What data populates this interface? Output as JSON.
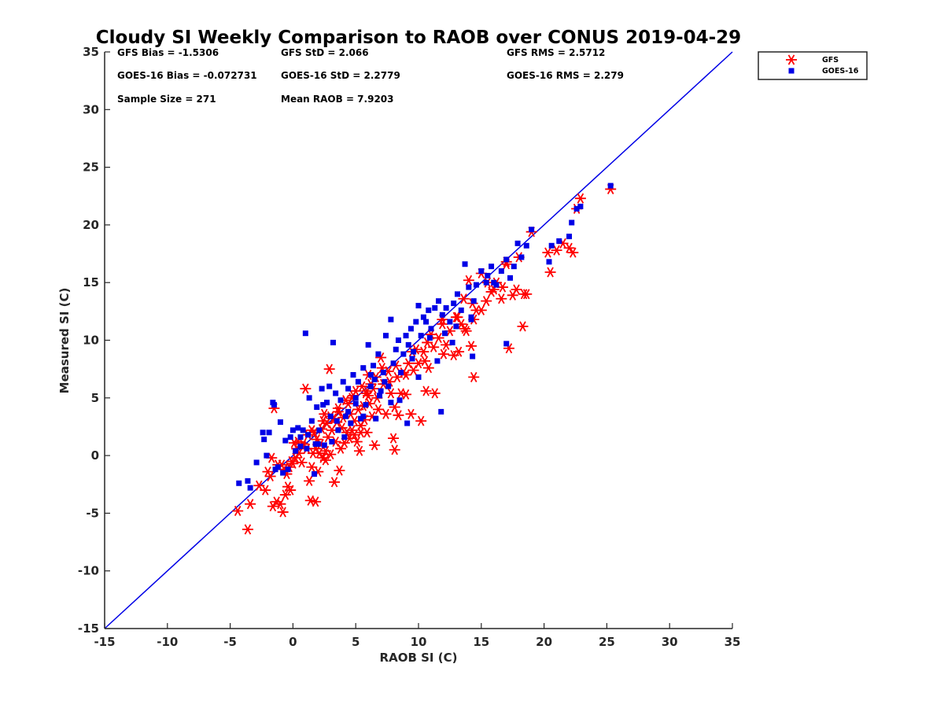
{
  "chart_data": {
    "type": "scatter",
    "title": "Cloudy SI Weekly Comparison to RAOB over CONUS 2019-04-29",
    "xlabel": "RAOB SI (C)",
    "ylabel": "Measured SI (C)",
    "xlim": [
      -15,
      35
    ],
    "ylim": [
      -15,
      35
    ],
    "xticks": [
      "-15",
      "-10",
      "-5",
      "0",
      "5",
      "10",
      "15",
      "20",
      "25",
      "30",
      "35"
    ],
    "yticks": [
      "-15",
      "-10",
      "-5",
      "0",
      "5",
      "10",
      "15",
      "20",
      "25",
      "30",
      "35"
    ],
    "grid": false,
    "legend_position": "outside top-right",
    "reference_line": {
      "x": [
        -15,
        35
      ],
      "y": [
        -15,
        35
      ],
      "color": "#0000e6"
    },
    "stats": [
      [
        "GFS Bias = -1.5306",
        "GFS StD = 2.066",
        "GFS RMS = 2.5712"
      ],
      [
        "GOES-16 Bias = -0.072731",
        "GOES-16 StD = 2.2779",
        "GOES-16 RMS = 2.279"
      ],
      [
        "Sample Size = 271",
        "Mean RAOB = 7.9203",
        ""
      ]
    ],
    "series": [
      {
        "name": "GFS",
        "marker": "asterisk",
        "color": "#ff0000",
        "x": [
          -4.4,
          -3.6,
          -3.4,
          -2.7,
          -2.2,
          -2.0,
          -1.8,
          -1.6,
          -1.5,
          -1.3,
          -1.2,
          -1.0,
          -0.9,
          -0.8,
          -0.7,
          -0.6,
          -0.5,
          -0.4,
          -0.3,
          -0.2,
          -0.1,
          0.0,
          0.1,
          0.2,
          0.3,
          0.4,
          0.5,
          0.7,
          0.8,
          1.0,
          1.1,
          1.2,
          1.3,
          1.4,
          1.5,
          1.6,
          1.7,
          1.8,
          1.9,
          2.0,
          2.1,
          2.2,
          2.3,
          2.4,
          2.5,
          2.6,
          2.7,
          2.8,
          2.9,
          3.0,
          3.1,
          3.2,
          3.3,
          3.4,
          3.5,
          3.6,
          3.7,
          3.8,
          3.9,
          4.0,
          4.1,
          4.2,
          4.3,
          4.4,
          4.5,
          4.6,
          4.7,
          4.8,
          4.9,
          5.0,
          5.1,
          5.2,
          5.3,
          5.4,
          5.5,
          5.6,
          5.7,
          5.8,
          5.9,
          6.0,
          6.1,
          6.2,
          6.3,
          6.4,
          6.5,
          6.6,
          6.7,
          6.8,
          7.0,
          7.2,
          7.4,
          7.6,
          7.8,
          8.0,
          8.1,
          8.2,
          8.4,
          8.6,
          8.8,
          9.0,
          9.2,
          9.4,
          9.6,
          9.8,
          10.0,
          10.2,
          10.4,
          10.6,
          10.8,
          11.0,
          11.3,
          11.6,
          11.9,
          12.2,
          12.5,
          12.8,
          13.0,
          13.2,
          13.4,
          13.6,
          13.8,
          14.0,
          14.2,
          14.4,
          14.6,
          15.0,
          15.4,
          15.8,
          16.2,
          16.6,
          17.0,
          17.2,
          17.5,
          17.8,
          18.0,
          18.3,
          18.6,
          19.0,
          20.3,
          20.5,
          21.0,
          21.5,
          22.0,
          22.3,
          22.6,
          22.9,
          25.3,
          0.8,
          1.5,
          2.4,
          3.6,
          4.7,
          5.9,
          7.1,
          8.3,
          9.5,
          10.7,
          11.9,
          13.1,
          14.3,
          15.5,
          16.7,
          3.0,
          6.0,
          9.0,
          12.0,
          15.0,
          18.4,
          17.0,
          14.4,
          10.5,
          8.1,
          5.4,
          2.6,
          1.8,
          -1.7,
          4.9,
          7.7,
          11.2,
          13.7,
          16.0
        ],
        "y": [
          -4.8,
          -6.4,
          -4.2,
          -2.6,
          -3.0,
          -1.4,
          -1.8,
          -4.4,
          4.1,
          -4.0,
          -0.8,
          -4.2,
          -0.8,
          -4.9,
          -1.2,
          -3.4,
          -1.6,
          -2.7,
          -1.0,
          -3.0,
          -0.5,
          -0.7,
          1.1,
          -0.2,
          0.6,
          1.2,
          0.2,
          -0.6,
          0.8,
          5.8,
          0.6,
          1.8,
          -2.2,
          -3.9,
          -1.0,
          0.2,
          2.0,
          -4.0,
          1.4,
          -1.4,
          0.2,
          1.0,
          2.3,
          -0.2,
          3.6,
          0.4,
          2.8,
          1.6,
          7.5,
          0.1,
          2.2,
          3.2,
          -2.3,
          1.2,
          2.9,
          4.1,
          -1.3,
          0.6,
          2.4,
          3.3,
          1.1,
          4.8,
          2.0,
          4.5,
          1.5,
          3.6,
          2.2,
          5.2,
          3.0,
          5.6,
          1.2,
          4.0,
          0.4,
          2.6,
          6.0,
          4.3,
          3.1,
          5.4,
          2.0,
          7.0,
          4.5,
          6.2,
          3.4,
          5.8,
          0.9,
          6.8,
          5.0,
          4.0,
          8.5,
          6.2,
          3.6,
          7.3,
          5.4,
          1.5,
          0.5,
          7.8,
          3.5,
          5.4,
          7.2,
          5.3,
          8.0,
          3.6,
          7.4,
          9.2,
          8.0,
          3.0,
          9.0,
          5.6,
          7.6,
          10.5,
          5.4,
          10.2,
          11.8,
          9.6,
          10.8,
          8.7,
          12.0,
          9.0,
          11.4,
          13.6,
          10.8,
          15.2,
          9.5,
          6.8,
          12.6,
          15.8,
          13.4,
          14.2,
          15.0,
          13.6,
          16.8,
          9.3,
          13.9,
          14.4,
          17.2,
          11.2,
          14.0,
          19.4,
          17.6,
          15.9,
          17.8,
          18.4,
          18.0,
          17.6,
          21.4,
          22.3,
          23.1,
          1.0,
          2.2,
          3.0,
          3.8,
          5.0,
          5.6,
          7.6,
          6.8,
          9.0,
          9.8,
          11.4,
          12.0,
          13.2,
          15.0,
          14.6,
          3.4,
          5.2,
          7.0,
          8.8,
          12.6,
          14.0,
          16.6,
          11.8,
          8.2,
          4.2,
          2.0,
          -0.4,
          0.6,
          -0.2,
          1.8,
          6.4,
          9.4,
          11.0,
          14.4
        ]
      },
      {
        "name": "GOES-16",
        "marker": "square",
        "color": "#0000e6",
        "x": [
          -4.3,
          -3.6,
          -3.4,
          -2.9,
          -2.3,
          -2.1,
          -1.9,
          -1.6,
          -1.4,
          -1.2,
          -1.0,
          -0.8,
          -0.6,
          -0.4,
          -0.2,
          0.0,
          0.2,
          0.4,
          0.6,
          0.8,
          1.0,
          1.2,
          1.3,
          1.5,
          1.7,
          1.9,
          2.1,
          2.3,
          2.5,
          2.7,
          2.9,
          3.0,
          3.2,
          3.4,
          3.6,
          3.8,
          4.0,
          4.2,
          4.4,
          4.6,
          4.8,
          5.0,
          5.2,
          5.4,
          5.6,
          5.8,
          6.0,
          6.2,
          6.4,
          6.6,
          6.8,
          7.0,
          7.2,
          7.4,
          7.6,
          7.8,
          8.0,
          8.2,
          8.4,
          8.6,
          8.8,
          9.0,
          9.2,
          9.4,
          9.6,
          9.8,
          10.0,
          10.2,
          10.4,
          10.6,
          10.8,
          11.0,
          11.3,
          11.6,
          11.9,
          12.2,
          12.5,
          12.8,
          13.1,
          13.4,
          13.7,
          14.0,
          14.2,
          14.4,
          14.6,
          15.0,
          15.4,
          15.8,
          16.2,
          16.6,
          17.0,
          17.3,
          17.6,
          17.9,
          18.2,
          18.6,
          19.0,
          20.4,
          20.6,
          21.2,
          22.0,
          22.2,
          22.6,
          22.9,
          25.3,
          1.1,
          3.1,
          7.8,
          0.6,
          2.0,
          4.1,
          5.6,
          6.9,
          8.5,
          10.0,
          11.5,
          12.7,
          14.2,
          16.0,
          17.0,
          3.5,
          5.0,
          6.5,
          9.1,
          13.0,
          11.8,
          9.5,
          14.3,
          2.4,
          -1.5,
          -2.4,
          1.8,
          4.4,
          6.2,
          7.3,
          10.9,
          12.1,
          15.5
        ],
        "y": [
          -2.4,
          -2.2,
          -2.8,
          -0.6,
          1.4,
          0.0,
          2.0,
          4.6,
          -1.2,
          -1.0,
          2.9,
          -1.5,
          1.3,
          -1.2,
          1.6,
          2.2,
          0.4,
          2.4,
          0.8,
          2.2,
          10.6,
          1.8,
          5.0,
          3.0,
          -1.6,
          4.2,
          2.2,
          5.8,
          0.9,
          4.6,
          6.0,
          3.4,
          9.8,
          5.4,
          2.2,
          4.8,
          6.4,
          3.4,
          5.8,
          2.8,
          7.0,
          4.5,
          6.4,
          3.2,
          7.6,
          4.4,
          9.6,
          6.0,
          7.8,
          3.2,
          8.8,
          5.6,
          7.2,
          10.4,
          6.0,
          11.8,
          8.0,
          9.2,
          10.0,
          7.2,
          8.8,
          10.4,
          9.6,
          11.0,
          9.0,
          11.6,
          13.0,
          10.4,
          12.0,
          11.6,
          12.6,
          11.0,
          12.8,
          13.4,
          12.2,
          12.8,
          11.6,
          13.2,
          14.0,
          12.6,
          16.6,
          14.6,
          11.8,
          13.4,
          14.8,
          16.0,
          15.0,
          16.4,
          14.8,
          16.0,
          17.0,
          15.4,
          16.4,
          18.4,
          17.2,
          18.2,
          19.6,
          16.8,
          18.2,
          18.6,
          19.0,
          20.2,
          21.4,
          21.6,
          23.4,
          0.6,
          1.2,
          4.6,
          1.6,
          1.0,
          1.6,
          3.4,
          5.2,
          4.8,
          6.8,
          8.2,
          9.8,
          12.0,
          15.0,
          9.7,
          3.0,
          5.0,
          6.6,
          2.8,
          11.2,
          3.8,
          8.4,
          8.6,
          4.4,
          4.4,
          2.0,
          1.0,
          3.8,
          7.0,
          6.4,
          10.2,
          10.6,
          15.6
        ]
      }
    ]
  }
}
